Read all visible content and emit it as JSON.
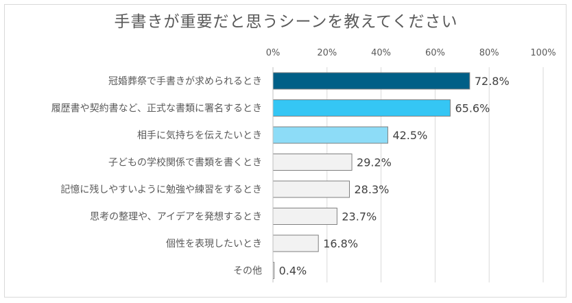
{
  "chart_data": {
    "type": "bar",
    "orientation": "horizontal",
    "title": "手書きが重要だと思うシーンを教えてください",
    "categories": [
      "冠婚葬祭で手書きが求められるとき",
      "履歴書や契約書など、正式な書類に署名するとき",
      "相手に気持ちを伝えたいとき",
      "子どもの学校関係で書類を書くとき",
      "記憶に残しやすいように勉強や練習をするとき",
      "思考の整理や、アイデアを発想するとき",
      "個性を表現したいとき",
      "その他"
    ],
    "values": [
      72.8,
      65.6,
      42.5,
      29.2,
      28.3,
      23.7,
      16.8,
      0.4
    ],
    "data_labels": [
      "72.8%",
      "65.6%",
      "42.5%",
      "29.2%",
      "28.3%",
      "23.7%",
      "16.8%",
      "0.4%"
    ],
    "x_ticks": [
      "0%",
      "20%",
      "40%",
      "60%",
      "80%",
      "100%"
    ],
    "xlim": [
      0,
      100
    ],
    "x_axis_position": "top",
    "grid": true,
    "bar_colors": [
      "#005f87",
      "#35c6f4",
      "#8ddcf7",
      "#f2f2f2",
      "#f2f2f2",
      "#f2f2f2",
      "#f2f2f2",
      "#f2f2f2"
    ],
    "bar_border_color": "#7f7f7f",
    "gridline_color": "#d9d9d9"
  }
}
